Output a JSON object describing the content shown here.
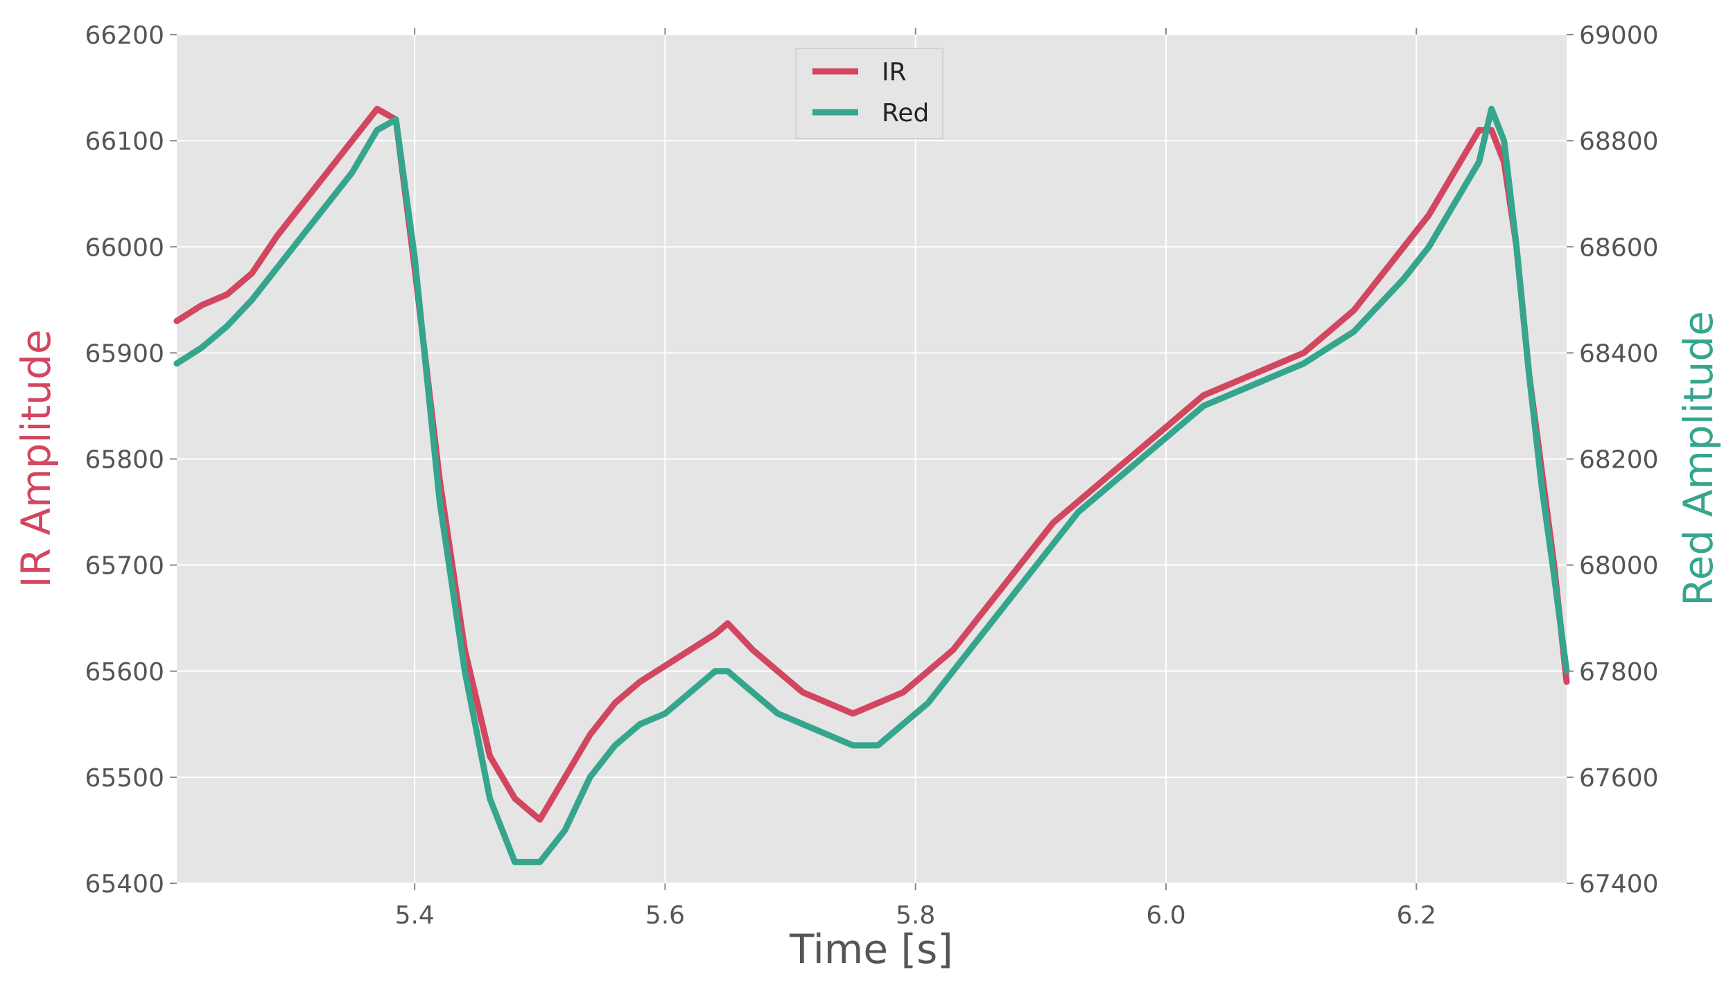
{
  "chart_data": {
    "type": "line",
    "xlabel": "Time [s]",
    "ylabel_left": "IR Amplitude",
    "ylabel_right": "Red Amplitude",
    "xlim": [
      5.21,
      6.32
    ],
    "ylim_left": [
      65400,
      66200
    ],
    "ylim_right": [
      67400,
      69000
    ],
    "xticks": [
      "5.4",
      "5.6",
      "5.8",
      "6.0",
      "6.2"
    ],
    "yticks_left": [
      "65400",
      "65500",
      "65600",
      "65700",
      "65800",
      "65900",
      "66000",
      "66100",
      "66200"
    ],
    "yticks_right": [
      "67400",
      "67600",
      "67800",
      "68000",
      "68200",
      "68400",
      "68600",
      "68800",
      "69000"
    ],
    "grid": true,
    "legend_position": "upper-center",
    "background": "#e5e5e5",
    "colors": {
      "ir": "#d2465f",
      "red": "#35a58e",
      "axis_text": "#555555"
    },
    "series": [
      {
        "name": "IR",
        "axis": "left",
        "x": [
          5.21,
          5.23,
          5.25,
          5.27,
          5.29,
          5.31,
          5.33,
          5.35,
          5.37,
          5.385,
          5.4,
          5.42,
          5.44,
          5.46,
          5.48,
          5.5,
          5.52,
          5.54,
          5.56,
          5.58,
          5.6,
          5.62,
          5.64,
          5.65,
          5.67,
          5.69,
          5.71,
          5.73,
          5.75,
          5.77,
          5.79,
          5.81,
          5.83,
          5.85,
          5.87,
          5.89,
          5.91,
          5.93,
          5.95,
          5.97,
          5.99,
          6.01,
          6.03,
          6.05,
          6.07,
          6.09,
          6.11,
          6.13,
          6.15,
          6.17,
          6.19,
          6.21,
          6.23,
          6.25,
          6.26,
          6.27,
          6.28,
          6.29,
          6.3,
          6.31,
          6.32
        ],
        "values": [
          65930,
          65945,
          65955,
          65975,
          66010,
          66040,
          66070,
          66100,
          66130,
          66120,
          65980,
          65780,
          65620,
          65520,
          65480,
          65460,
          65500,
          65540,
          65570,
          65590,
          65605,
          65620,
          65635,
          65645,
          65620,
          65600,
          65580,
          65570,
          65560,
          65570,
          65580,
          65600,
          65620,
          65650,
          65680,
          65710,
          65740,
          65760,
          65780,
          65800,
          65820,
          65840,
          65860,
          65870,
          65880,
          65890,
          65900,
          65920,
          65940,
          65970,
          66000,
          66030,
          66070,
          66110,
          66110,
          66080,
          66000,
          65880,
          65790,
          65700,
          65590
        ]
      },
      {
        "name": "Red",
        "axis": "right",
        "x": [
          5.21,
          5.23,
          5.25,
          5.27,
          5.29,
          5.31,
          5.33,
          5.35,
          5.37,
          5.385,
          5.4,
          5.42,
          5.44,
          5.46,
          5.48,
          5.5,
          5.52,
          5.54,
          5.56,
          5.58,
          5.6,
          5.62,
          5.64,
          5.65,
          5.67,
          5.69,
          5.71,
          5.73,
          5.75,
          5.77,
          5.79,
          5.81,
          5.83,
          5.85,
          5.87,
          5.89,
          5.91,
          5.93,
          5.95,
          5.97,
          5.99,
          6.01,
          6.03,
          6.05,
          6.07,
          6.09,
          6.11,
          6.13,
          6.15,
          6.17,
          6.19,
          6.21,
          6.23,
          6.25,
          6.26,
          6.27,
          6.28,
          6.29,
          6.3,
          6.31,
          6.32
        ],
        "values": [
          68380,
          68410,
          68450,
          68500,
          68560,
          68620,
          68680,
          68740,
          68820,
          68840,
          68580,
          68120,
          67800,
          67560,
          67440,
          67440,
          67500,
          67600,
          67660,
          67700,
          67720,
          67760,
          67800,
          67800,
          67760,
          67720,
          67700,
          67680,
          67660,
          67660,
          67700,
          67740,
          67800,
          67860,
          67920,
          67980,
          68040,
          68100,
          68140,
          68180,
          68220,
          68260,
          68300,
          68320,
          68340,
          68360,
          68380,
          68410,
          68440,
          68490,
          68540,
          68600,
          68680,
          68760,
          68860,
          68800,
          68600,
          68360,
          68150,
          67980,
          67800
        ]
      }
    ]
  }
}
